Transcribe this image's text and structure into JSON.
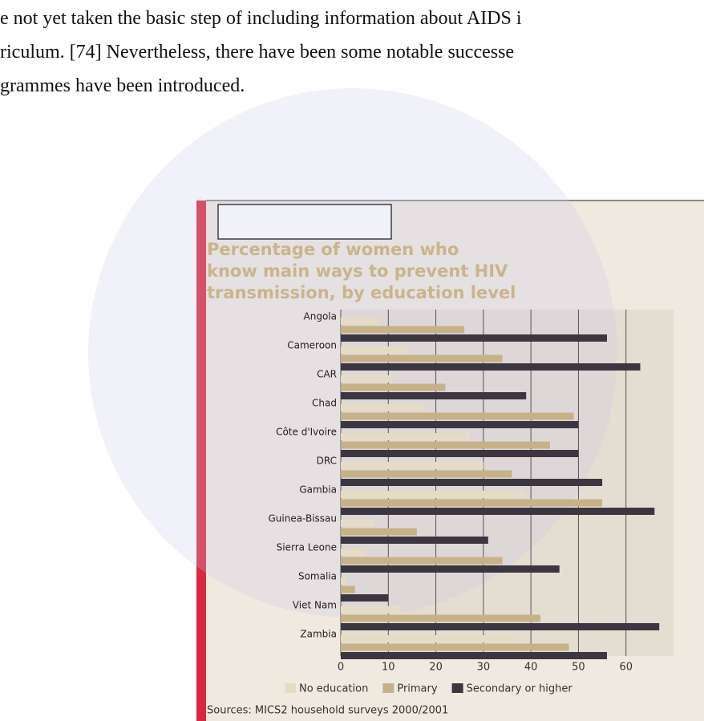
{
  "document": {
    "lines": [
      "e not yet taken the basic step of including information about AIDS i",
      "riculum. [74] Nevertheless, there have been some notable successe",
      "grammes have been introduced."
    ]
  },
  "chart_data": {
    "type": "bar",
    "orientation": "horizontal",
    "title": [
      "Percentage of women who",
      "know main ways to prevent HIV",
      "transmission, by education level"
    ],
    "categories": [
      "Angola",
      "Cameroon",
      "CAR",
      "Chad",
      "Côte d'Ivoire",
      "DRC",
      "Gambia",
      "Guinea-Bissau",
      "Sierra Leone",
      "Somalia",
      "Viet Nam",
      "Zambia"
    ],
    "series": [
      {
        "name": "No education",
        "color": "#e6dcc6",
        "values": [
          8,
          14,
          11,
          18,
          27,
          30,
          39,
          7,
          5,
          1,
          13,
          37
        ]
      },
      {
        "name": "Primary",
        "color": "#c6b189",
        "values": [
          26,
          34,
          22,
          49,
          44,
          36,
          55,
          16,
          34,
          3,
          42,
          48
        ]
      },
      {
        "name": "Secondary or higher",
        "color": "#3b3640",
        "values": [
          56,
          63,
          39,
          50,
          50,
          55,
          66,
          31,
          46,
          10,
          67,
          56
        ]
      }
    ],
    "xlim": [
      0,
      70
    ],
    "xticks": [
      0,
      10,
      20,
      30,
      40,
      50,
      60
    ],
    "grid": true,
    "legend": "bottom",
    "source": "Sources: MICS2 household surveys 2000/2001"
  }
}
